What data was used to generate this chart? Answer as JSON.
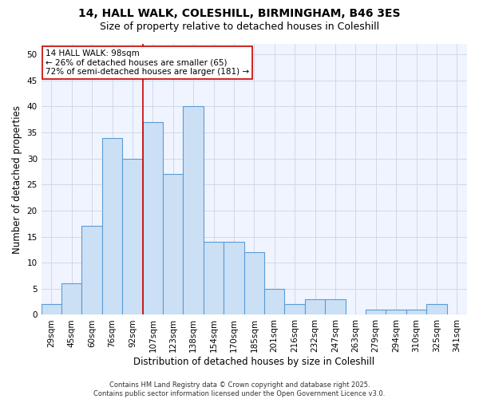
{
  "title1": "14, HALL WALK, COLESHILL, BIRMINGHAM, B46 3ES",
  "title2": "Size of property relative to detached houses in Coleshill",
  "xlabel": "Distribution of detached houses by size in Coleshill",
  "ylabel": "Number of detached properties",
  "categories": [
    "29sqm",
    "45sqm",
    "60sqm",
    "76sqm",
    "92sqm",
    "107sqm",
    "123sqm",
    "138sqm",
    "154sqm",
    "170sqm",
    "185sqm",
    "201sqm",
    "216sqm",
    "232sqm",
    "247sqm",
    "263sqm",
    "279sqm",
    "294sqm",
    "310sqm",
    "325sqm",
    "341sqm"
  ],
  "values": [
    2,
    6,
    17,
    34,
    30,
    37,
    27,
    40,
    14,
    14,
    12,
    5,
    2,
    3,
    3,
    0,
    1,
    1,
    1,
    2,
    0
  ],
  "bar_color": "#cce0f5",
  "bar_edge_color": "#5b9bd5",
  "grid_color": "#d0d8e8",
  "annotation_line1": "14 HALL WALK: 98sqm",
  "annotation_line2": "← 26% of detached houses are smaller (65)",
  "annotation_line3": "72% of semi-detached houses are larger (181) →",
  "annotation_box_color": "#ffffff",
  "annotation_box_edge_color": "#cc0000",
  "vline_color": "#cc0000",
  "vline_x": 4.5,
  "ylim": [
    0,
    52
  ],
  "yticks": [
    0,
    5,
    10,
    15,
    20,
    25,
    30,
    35,
    40,
    45,
    50
  ],
  "footer_text": "Contains HM Land Registry data © Crown copyright and database right 2025.\nContains public sector information licensed under the Open Government Licence v3.0.",
  "title_fontsize": 10,
  "subtitle_fontsize": 9,
  "axis_label_fontsize": 8.5,
  "tick_fontsize": 7.5,
  "annotation_fontsize": 7.5,
  "footer_fontsize": 6.0
}
